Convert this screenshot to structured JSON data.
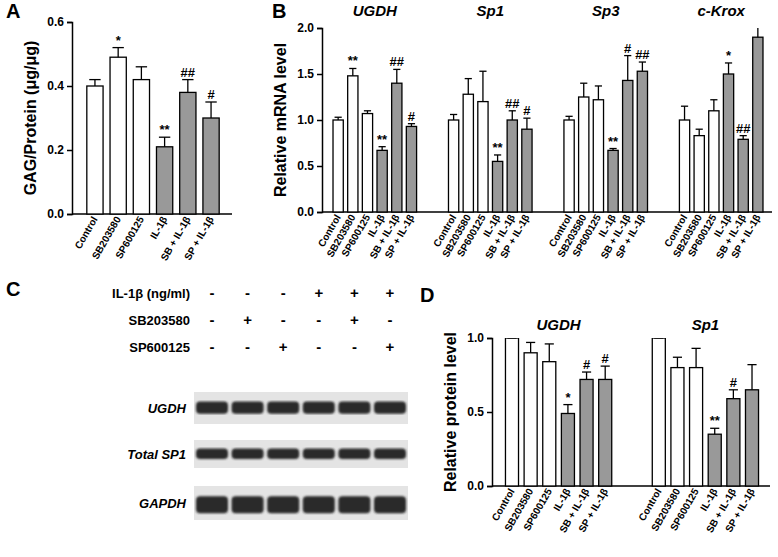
{
  "chart_data": [
    {
      "type": "bar",
      "panel": "A",
      "y_label": "GAG/Protein (μg/μg)",
      "categories": [
        "Control",
        "SB203580",
        "SP600125",
        "IL-1β",
        "SB + IL-1β",
        "SP + IL-1β"
      ],
      "values": [
        0.4,
        0.49,
        0.42,
        0.21,
        0.38,
        0.3
      ],
      "errors": [
        0.02,
        0.03,
        0.04,
        0.03,
        0.04,
        0.05
      ],
      "annotations": [
        null,
        "*",
        null,
        "**",
        "##",
        "#"
      ],
      "colors": [
        "#ffffff",
        "#ffffff",
        "#ffffff",
        "#999999",
        "#999999",
        "#999999"
      ],
      "ylim": [
        0,
        0.6
      ],
      "yticks": [
        {
          "value": 0,
          "label": "0.0"
        },
        0.2,
        0.4,
        0.6
      ]
    },
    {
      "type": "bar",
      "panel": "B",
      "y_label": "Relative mRNA level",
      "categories": [
        "Control",
        "SB203580",
        "SP600125",
        "IL-1β",
        "SB + IL-1β",
        "SP + IL-1β"
      ],
      "colors": [
        "#ffffff",
        "#ffffff",
        "#ffffff",
        "#999999",
        "#999999",
        "#999999"
      ],
      "series": [
        {
          "name": "UGDH",
          "values": [
            1.0,
            1.48,
            1.07,
            0.67,
            1.4,
            0.93
          ],
          "errors": [
            0.03,
            0.08,
            0.03,
            0.04,
            0.15,
            0.03
          ],
          "annotations": [
            null,
            "**",
            null,
            "**",
            "##",
            "#"
          ]
        },
        {
          "name": "Sp1",
          "values": [
            1.0,
            1.28,
            1.2,
            0.55,
            1.0,
            0.9
          ],
          "errors": [
            0.06,
            0.17,
            0.33,
            0.07,
            0.1,
            0.12
          ],
          "annotations": [
            null,
            null,
            null,
            "**",
            "##",
            "#"
          ]
        },
        {
          "name": "Sp3",
          "values": [
            1.0,
            1.25,
            1.22,
            0.67,
            1.43,
            1.53
          ],
          "errors": [
            0.04,
            0.15,
            0.15,
            0.02,
            0.27,
            0.1
          ],
          "annotations": [
            null,
            null,
            null,
            "**",
            "#",
            "##"
          ]
        },
        {
          "name": "c-Krox",
          "values": [
            1.0,
            0.83,
            1.1,
            1.5,
            0.79,
            1.9
          ],
          "errors": [
            0.15,
            0.07,
            0.12,
            0.12,
            0.04,
            0.12
          ],
          "annotations": [
            null,
            null,
            null,
            "*",
            "##",
            null
          ]
        }
      ],
      "ylim": [
        0,
        2.0
      ],
      "yticks": [
        {
          "value": 0,
          "label": "0.0"
        },
        0.5,
        {
          "value": 1,
          "label": "1.0"
        },
        1.5,
        {
          "value": 2,
          "label": "2.0"
        }
      ]
    },
    {
      "type": "blot",
      "panel": "C",
      "conditions": [
        {
          "name": "IL-1β (ng/ml)",
          "values": [
            "-",
            "-",
            "-",
            "+",
            "+",
            "+"
          ]
        },
        {
          "name": "SB203580",
          "values": [
            "-",
            "+",
            "-",
            "-",
            "+",
            "-"
          ]
        },
        {
          "name": "SP600125",
          "values": [
            "-",
            "-",
            "+",
            "-",
            "-",
            "+"
          ]
        }
      ],
      "bands": [
        "UGDH",
        "Total SP1",
        "GAPDH"
      ]
    },
    {
      "type": "bar",
      "panel": "D",
      "y_label": "Relative protein level",
      "categories": [
        "Control",
        "SB203580",
        "SP600125",
        "IL-1β",
        "SB + IL-1β",
        "SP + IL-1β"
      ],
      "colors": [
        "#ffffff",
        "#ffffff",
        "#ffffff",
        "#999999",
        "#999999",
        "#999999"
      ],
      "series": [
        {
          "name": "UGDH",
          "values": [
            1.0,
            0.9,
            0.84,
            0.49,
            0.72,
            0.72
          ],
          "errors": [
            0,
            0.07,
            0.12,
            0.06,
            0.05,
            0.09
          ],
          "annotations": [
            null,
            null,
            null,
            "*",
            "#",
            "#"
          ]
        },
        {
          "name": "Sp1",
          "values": [
            1.0,
            0.8,
            0.8,
            0.35,
            0.59,
            0.65
          ],
          "errors": [
            0,
            0.07,
            0.13,
            0.04,
            0.06,
            0.17
          ],
          "annotations": [
            null,
            null,
            null,
            "**",
            "#",
            null
          ]
        }
      ],
      "ylim": [
        0,
        1.0
      ],
      "yticks": [
        {
          "value": 0,
          "label": "0.0"
        },
        0.5,
        {
          "value": 1,
          "label": "1.0"
        }
      ]
    }
  ]
}
